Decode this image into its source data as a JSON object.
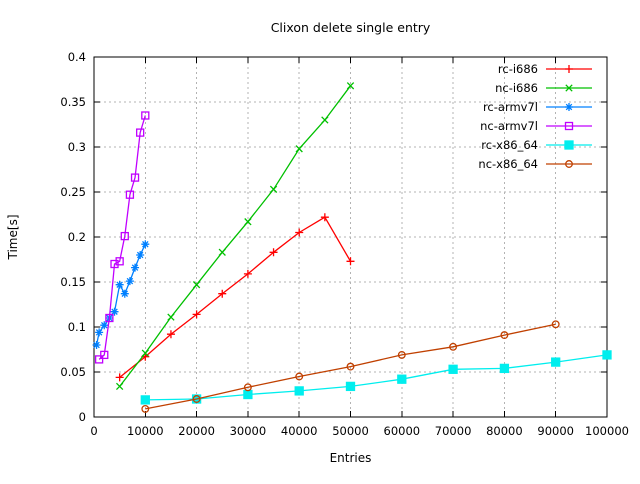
{
  "chart_data": {
    "type": "line",
    "title": "Clixon delete single entry",
    "xlabel": "Entries",
    "ylabel": "Time[s]",
    "xlim": [
      0,
      100000
    ],
    "ylim": [
      0,
      0.4
    ],
    "xticks": [
      0,
      10000,
      20000,
      30000,
      40000,
      50000,
      60000,
      70000,
      80000,
      90000,
      100000
    ],
    "xtick_labels": [
      "0",
      "10000",
      "20000",
      "30000",
      "40000",
      "50000",
      "60000",
      "70000",
      "80000",
      "90000",
      "100000"
    ],
    "yticks": [
      0,
      0.05,
      0.1,
      0.15,
      0.2,
      0.25,
      0.3,
      0.35,
      0.4
    ],
    "ytick_labels": [
      "0",
      "0.05",
      "0.1",
      "0.15",
      "0.2",
      "0.25",
      "0.3",
      "0.35",
      "0.4"
    ],
    "grid": true,
    "grid_color": "#b3b3b3",
    "border_color": "#000000",
    "legend_position": "top-right-inside",
    "series": [
      {
        "name": "rc-i686",
        "color": "#ff0000",
        "marker": "plus",
        "x": [
          5000,
          10000,
          15000,
          20000,
          25000,
          30000,
          35000,
          40000,
          45000,
          50000
        ],
        "y": [
          0.044,
          0.067,
          0.092,
          0.114,
          0.137,
          0.159,
          0.183,
          0.205,
          0.222,
          0.173
        ]
      },
      {
        "name": "nc-i686",
        "color": "#00c000",
        "marker": "cross",
        "x": [
          5000,
          10000,
          15000,
          20000,
          25000,
          30000,
          35000,
          40000,
          45000,
          50000
        ],
        "y": [
          0.034,
          0.071,
          0.111,
          0.147,
          0.183,
          0.217,
          0.253,
          0.298,
          0.33,
          0.368
        ]
      },
      {
        "name": "rc-armv7l",
        "color": "#0080ff",
        "marker": "asterisk",
        "x": [
          500,
          1000,
          2000,
          3000,
          4000,
          5000,
          6000,
          7000,
          8000,
          9000,
          10000
        ],
        "y": [
          0.08,
          0.094,
          0.102,
          0.11,
          0.117,
          0.147,
          0.137,
          0.151,
          0.166,
          0.18,
          0.192
        ]
      },
      {
        "name": "nc-armv7l",
        "color": "#c000ff",
        "marker": "square-open",
        "x": [
          1000,
          2000,
          3000,
          4000,
          5000,
          6000,
          7000,
          8000,
          9000,
          10000
        ],
        "y": [
          0.064,
          0.069,
          0.11,
          0.17,
          0.173,
          0.201,
          0.247,
          0.266,
          0.316,
          0.335
        ]
      },
      {
        "name": "rc-x86_64",
        "color": "#00eeee",
        "marker": "square-filled",
        "x": [
          10000,
          20000,
          30000,
          40000,
          50000,
          60000,
          70000,
          80000,
          90000,
          100000
        ],
        "y": [
          0.019,
          0.02,
          0.025,
          0.029,
          0.034,
          0.042,
          0.053,
          0.054,
          0.061,
          0.069
        ]
      },
      {
        "name": "nc-x86_64",
        "color": "#c04000",
        "marker": "circle-open",
        "x": [
          10000,
          20000,
          30000,
          40000,
          50000,
          60000,
          70000,
          80000,
          90000
        ],
        "y": [
          0.009,
          0.02,
          0.033,
          0.045,
          0.056,
          0.069,
          0.078,
          0.091,
          0.103
        ]
      }
    ]
  }
}
